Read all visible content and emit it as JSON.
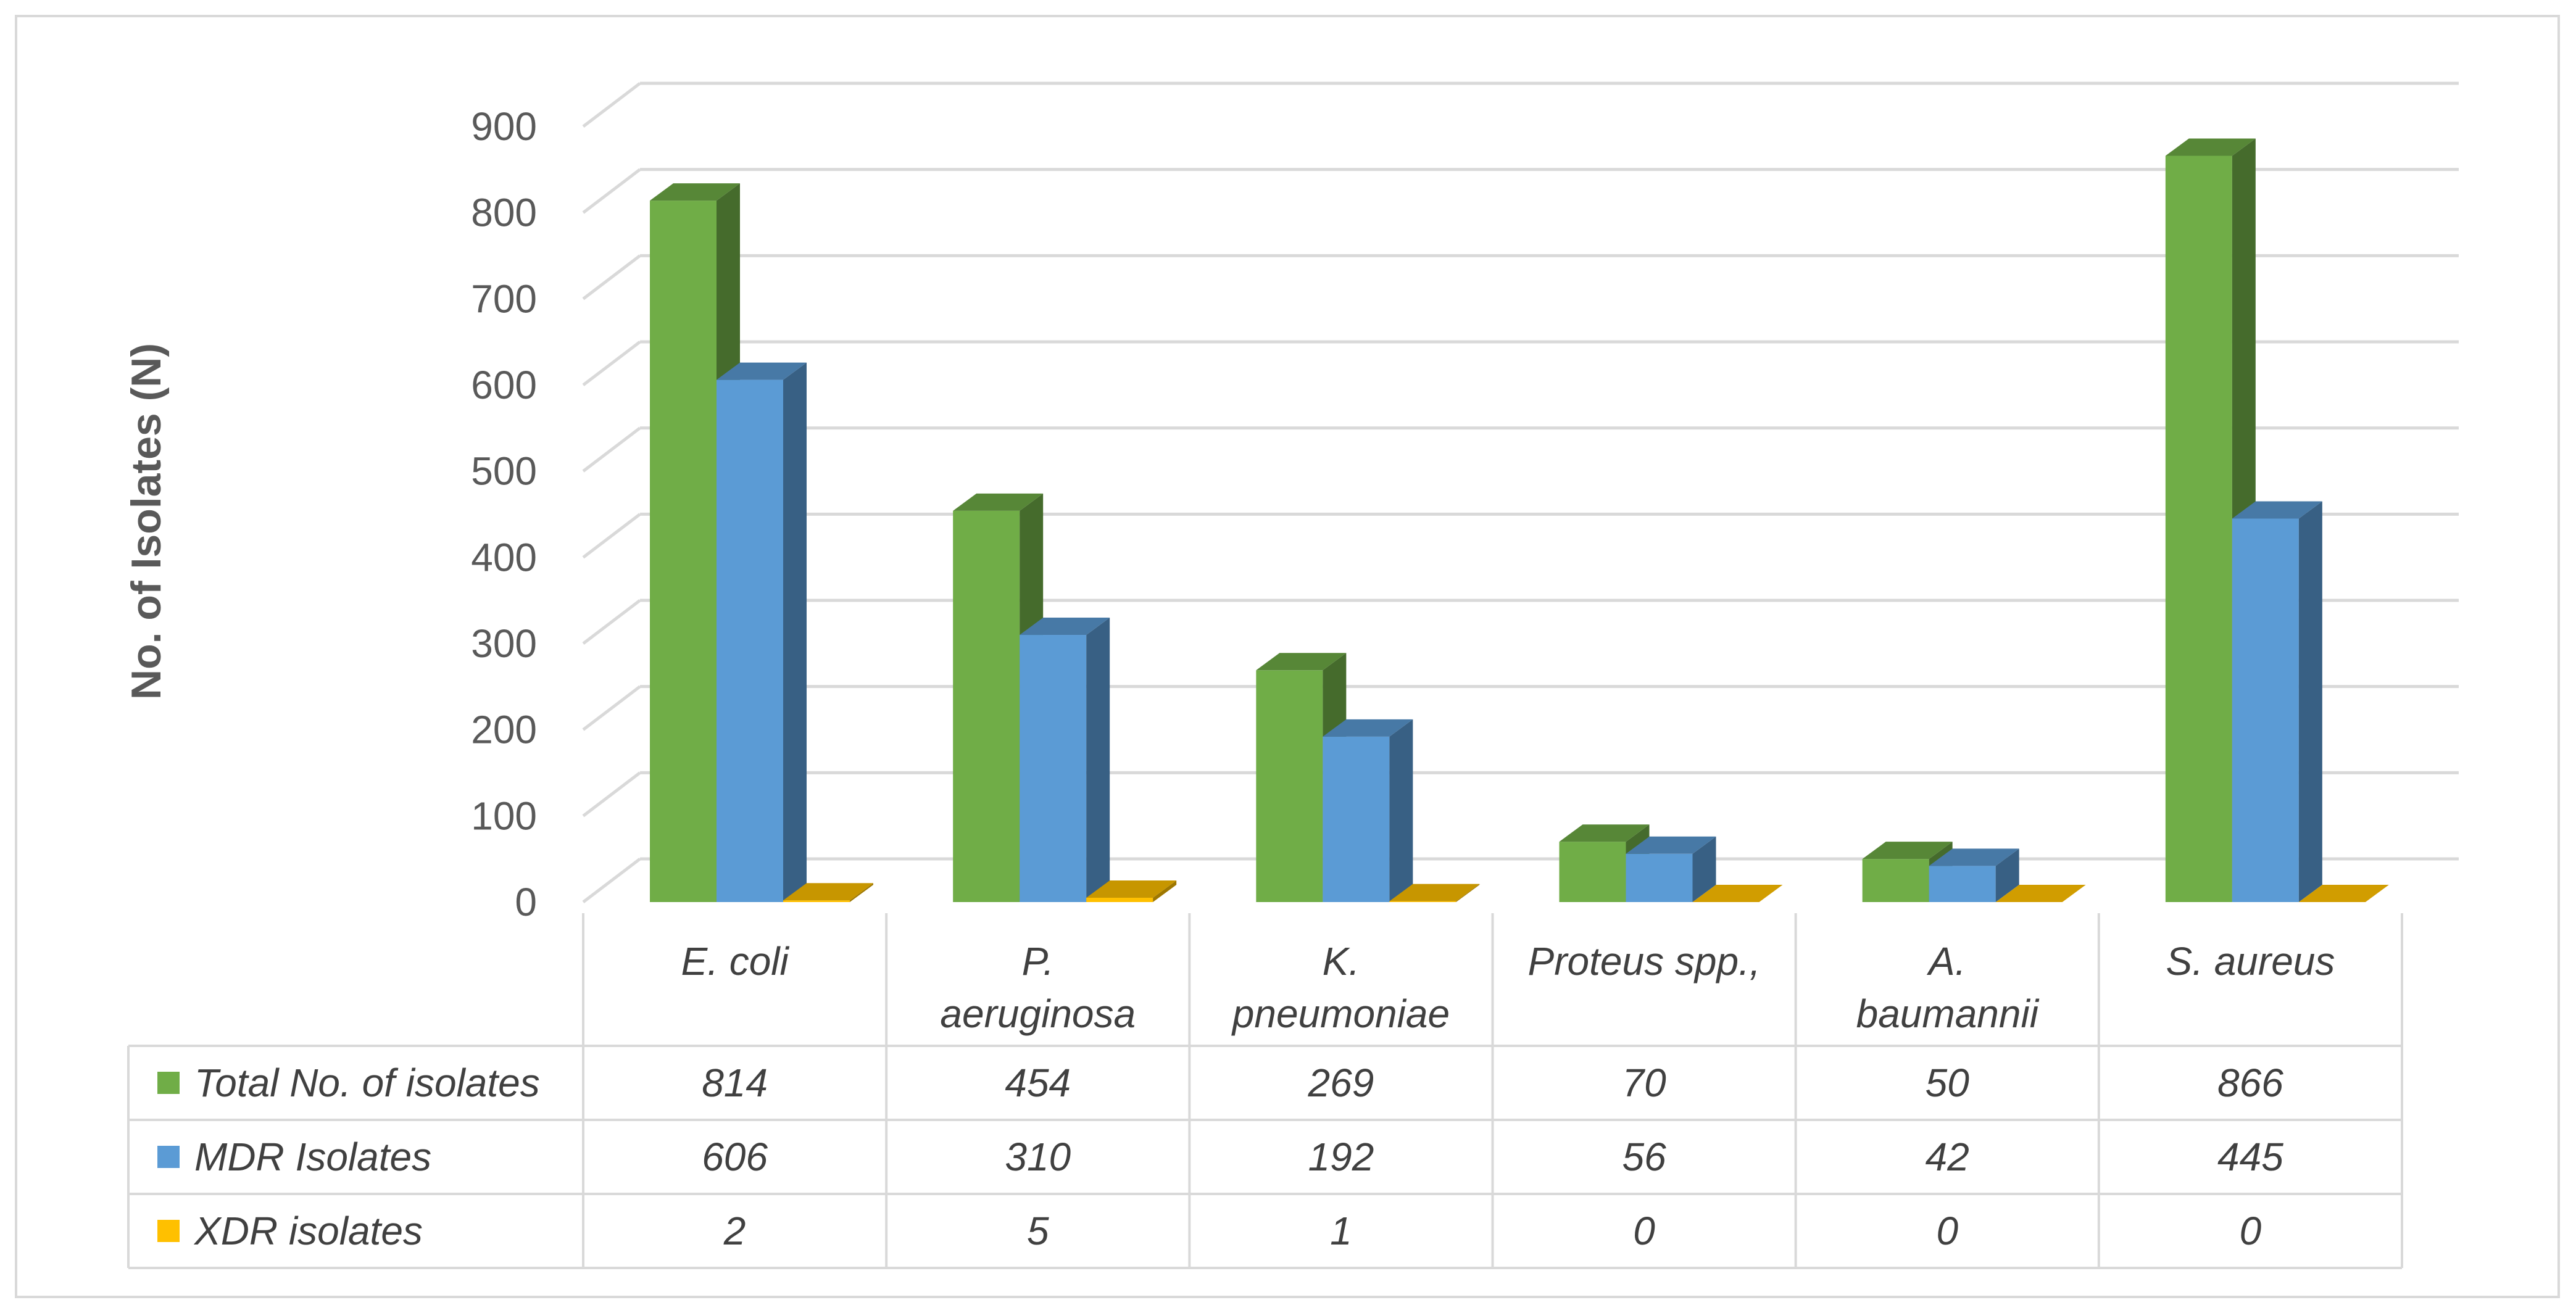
{
  "chart_data": {
    "type": "bar",
    "title": "",
    "ylabel": "No. of Isolates (N)",
    "ylim": [
      0,
      900
    ],
    "yticks": [
      0,
      100,
      200,
      300,
      400,
      500,
      600,
      700,
      800,
      900
    ],
    "grid": true,
    "legend": "data-table",
    "categories": [
      [
        "E. coli"
      ],
      [
        "P.",
        "aeruginosa"
      ],
      [
        "K.",
        "pneumoniae"
      ],
      [
        "Proteus spp.,"
      ],
      [
        "A.",
        "baumannii"
      ],
      [
        "S. aureus"
      ]
    ],
    "series": [
      {
        "name": "Total No. of isolates",
        "color": "#70AD47",
        "values": [
          814,
          454,
          269,
          70,
          50,
          866
        ]
      },
      {
        "name": "MDR Isolates",
        "color": "#5B9BD5",
        "values": [
          606,
          310,
          192,
          56,
          42,
          445
        ]
      },
      {
        "name": "XDR isolates",
        "color": "#FFC000",
        "values": [
          2,
          5,
          1,
          0,
          0,
          0
        ]
      }
    ]
  }
}
